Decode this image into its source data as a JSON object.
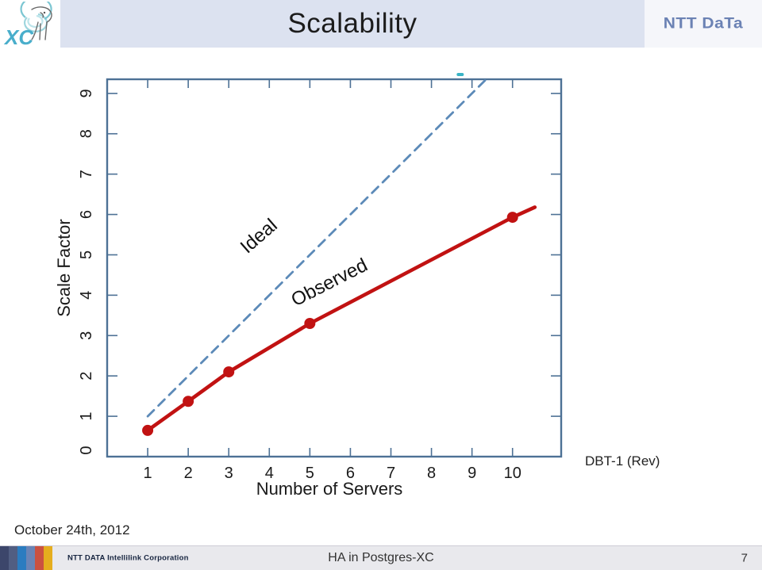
{
  "header": {
    "title": "Scalability",
    "brand_logo_text": "NTT DaTa",
    "xc_logo_text": "XC"
  },
  "chart_data": {
    "type": "line",
    "title": "",
    "xlabel": "Number of Servers",
    "ylabel": "Scale Factor",
    "xlim": [
      0,
      11.2
    ],
    "ylim": [
      0,
      9.35
    ],
    "xticks": [
      1,
      2,
      3,
      4,
      5,
      6,
      7,
      8,
      9,
      10
    ],
    "yticks": [
      0,
      1,
      2,
      3,
      4,
      5,
      6,
      7,
      8,
      9
    ],
    "grid": false,
    "axis_color": "#4d7195",
    "tick_label_color": "#1a1a1a",
    "series": [
      {
        "name": "Ideal",
        "style": "dashed",
        "color": "#5c8ab8",
        "x": [
          1,
          9.33
        ],
        "y": [
          1,
          9.33
        ],
        "label": "Ideal",
        "label_pos": {
          "x": 3.84,
          "y": 5.35
        },
        "label_angle": -41
      },
      {
        "name": "Observed",
        "style": "solid",
        "color": "#c11212",
        "x": [
          1,
          2,
          3,
          5,
          10,
          10.55
        ],
        "y": [
          0.65,
          1.37,
          2.1,
          3.3,
          5.93,
          6.18
        ],
        "markers": [
          [
            1,
            0.65
          ],
          [
            2,
            1.37
          ],
          [
            3,
            2.1
          ],
          [
            5,
            3.3
          ],
          [
            10,
            5.93
          ]
        ],
        "label": "Observed",
        "label_pos": {
          "x": 5.55,
          "y": 4.18
        },
        "label_angle": -27
      }
    ],
    "legend": "inline-labels",
    "annotation": "DBT-1 (Rev)"
  },
  "side_note": "DBT-1 (Rev)",
  "date_text": "October 24th, 2012",
  "footer": {
    "company": "NTT DATA Intellilink Corporation",
    "title": "HA in Postgres-XC",
    "page": "7",
    "bar_colors": [
      "#3c466b",
      "#515e82",
      "#2b7cc0",
      "#6a84b6",
      "#cb5140",
      "#e5ad1e"
    ]
  },
  "decor": {
    "cyan_dash_color": "#3ab4c6"
  }
}
